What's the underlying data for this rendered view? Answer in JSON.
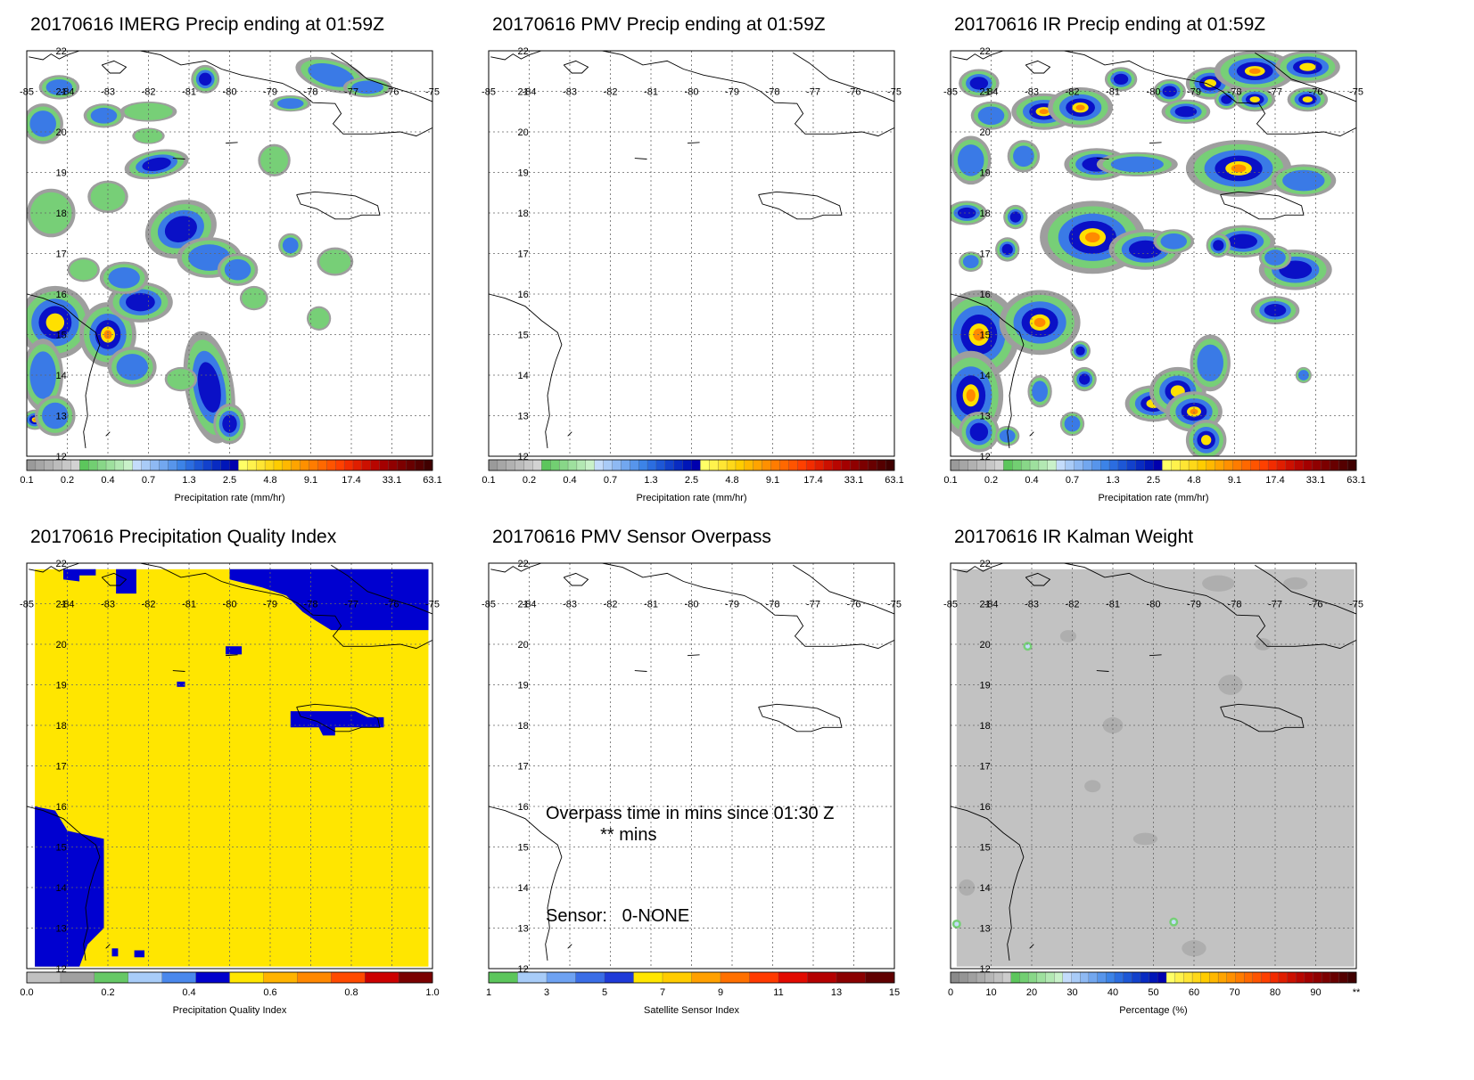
{
  "colors": {
    "precip_scale": [
      "#9a9a9a",
      "#a6a6a6",
      "#b1b1b1",
      "#bcbcbc",
      "#c7c7c7",
      "#d2d2d2",
      "#5cc65c",
      "#72cf72",
      "#88d788",
      "#9ee09e",
      "#b3e8b3",
      "#c9f1c9",
      "#c4dcfb",
      "#a9cbf7",
      "#8eb9f3",
      "#72a7ef",
      "#5795eb",
      "#3c83e7",
      "#2b6de0",
      "#1d57d6",
      "#1241cc",
      "#082bc2",
      "#0016b8",
      "#0000ae",
      "#ffff66",
      "#fff24c",
      "#ffe533",
      "#ffd819",
      "#ffcc00",
      "#ffb800",
      "#ffa400",
      "#ff9000",
      "#ff7c00",
      "#ff6800",
      "#ff5400",
      "#ff4000",
      "#f22c00",
      "#e01e00",
      "#cc1000",
      "#b80600",
      "#a40000",
      "#900000",
      "#7c0000",
      "#680000",
      "#540000",
      "#400000"
    ],
    "quality_scale": [
      "#c0c0c0",
      "#a0a0a0",
      "#66c866",
      "#a8ccf8",
      "#4a88ec",
      "#0000cc",
      "#ffe600",
      "#ffb400",
      "#ff8800",
      "#ff4a00",
      "#cc0000",
      "#7a0000"
    ],
    "sensor_scale": [
      "#5cc65c",
      "#a8ccf8",
      "#6ea2f2",
      "#3a6de6",
      "#1e3ad8",
      "#ffe600",
      "#ffcc00",
      "#ffa000",
      "#ff7000",
      "#ff3a00",
      "#e20a00",
      "#b40000",
      "#8a0000",
      "#600000"
    ],
    "weight_scale": [
      "#8a8a8a",
      "#959595",
      "#a0a0a0",
      "#ababab",
      "#b6b6b6",
      "#c1c1c1",
      "#cccccc",
      "#5cc65c",
      "#72cf72",
      "#88d788",
      "#9ee09e",
      "#b3e8b3",
      "#c9f1c9",
      "#c4dcfb",
      "#a9cbf7",
      "#8eb9f3",
      "#72a7ef",
      "#5795eb",
      "#3c83e7",
      "#2b6de0",
      "#1d57d6",
      "#1241cc",
      "#082bc2",
      "#0016b8",
      "#0000ae",
      "#ffff66",
      "#fff24c",
      "#ffe533",
      "#ffd819",
      "#ffcc00",
      "#ffb800",
      "#ffa400",
      "#ff9000",
      "#ff7c00",
      "#ff6800",
      "#ff5400",
      "#ff4000",
      "#f22c00",
      "#e01e00",
      "#cc1000",
      "#b80600",
      "#a40000",
      "#900000",
      "#7c0000",
      "#680000",
      "#540000",
      "#400000"
    ],
    "qi_blue": "#0000d0",
    "qi_yellow": "#ffe600",
    "weight_gray": "#c2c2c2"
  },
  "map_ticks": {
    "lon": [
      "-85",
      "-84",
      "-83",
      "-82",
      "-81",
      "-80",
      "-79",
      "-78",
      "-77",
      "-76",
      "-75"
    ],
    "lat": [
      "22",
      "21",
      "20",
      "19",
      "18",
      "17",
      "16",
      "15",
      "14",
      "13",
      "12"
    ]
  },
  "panels": [
    {
      "id": "imerg",
      "title": "20170616 IMERG Precip ending at 01:59Z",
      "colorbar": {
        "ticks": [
          "0.1",
          "0.2",
          "0.4",
          "0.7",
          "1.3",
          "2.5",
          "4.8",
          "9.1",
          "17.4",
          "33.1",
          "63.1"
        ],
        "label": "Precipitation rate (mm/hr)"
      }
    },
    {
      "id": "pmv",
      "title": "20170616 PMV Precip ending at 01:59Z",
      "colorbar": {
        "ticks": [
          "0.1",
          "0.2",
          "0.4",
          "0.7",
          "1.3",
          "2.5",
          "4.8",
          "9.1",
          "17.4",
          "33.1",
          "63.1"
        ],
        "label": "Precipitation rate (mm/hr)"
      }
    },
    {
      "id": "ir",
      "title": "20170616 IR Precip ending at 01:59Z",
      "colorbar": {
        "ticks": [
          "0.1",
          "0.2",
          "0.4",
          "0.7",
          "1.3",
          "2.5",
          "4.8",
          "9.1",
          "17.4",
          "33.1",
          "63.1"
        ],
        "label": "Precipitation rate (mm/hr)"
      }
    },
    {
      "id": "qi",
      "title": "20170616 Precipitation Quality Index",
      "colorbar": {
        "ticks": [
          "0.0",
          "0.2",
          "0.4",
          "0.6",
          "0.8",
          "1.0"
        ],
        "label": "Precipitation Quality Index"
      }
    },
    {
      "id": "overpass",
      "title": "20170616 PMV Sensor Overpass",
      "colorbar": {
        "ticks": [
          "1",
          "3",
          "5",
          "7",
          "9",
          "11",
          "13",
          "15"
        ],
        "label": "Satellite Sensor Index"
      },
      "overpass_lines": [
        "Overpass time in mins since 01:30 Z",
        "           ** mins"
      ],
      "sensor_line": "Sensor:   0-NONE"
    },
    {
      "id": "kalman",
      "title": "20170616 IR Kalman Weight",
      "colorbar": {
        "ticks": [
          "0",
          "10",
          "20",
          "30",
          "40",
          "50",
          "60",
          "70",
          "80",
          "90",
          "**"
        ],
        "label": "Percentage (%)"
      }
    }
  ]
}
